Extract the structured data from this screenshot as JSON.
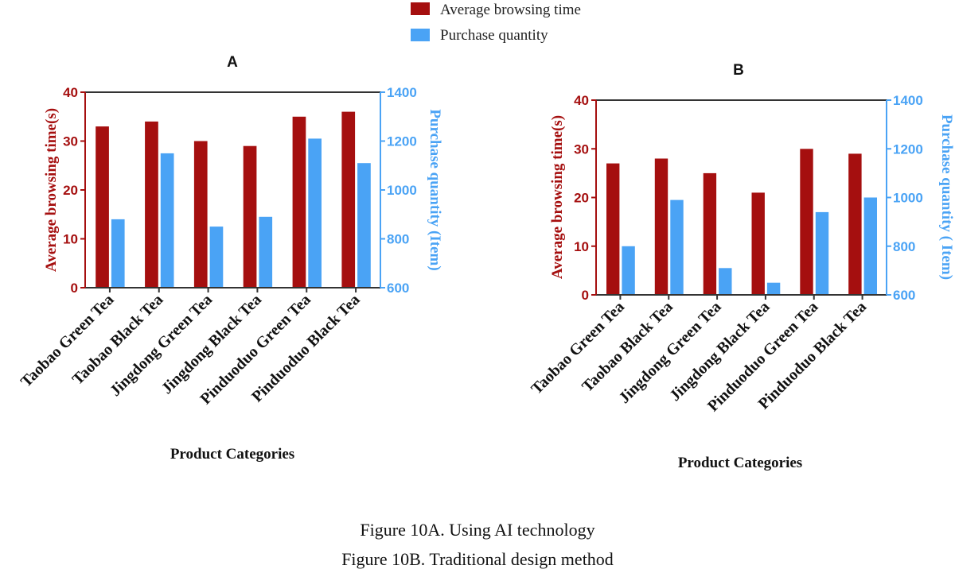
{
  "legend": {
    "items": [
      {
        "label": "Average browsing time",
        "color": "#a50f0f"
      },
      {
        "label": "Purchase quantity",
        "color": "#4aa3f5"
      }
    ]
  },
  "captions": [
    "Figure 10A. Using AI technology",
    "Figure 10B. Traditional design method"
  ],
  "chart_data": [
    {
      "type": "bar",
      "title": "A",
      "categories": [
        "Taobao Green Tea",
        "Taobao Black Tea",
        "Jingdong Green Tea",
        "Jingdong Black Tea",
        "Pinduoduo Green Tea",
        "Pinduoduo Black Tea"
      ],
      "xlabel": "Product Categories",
      "ylabel": "Average browsing time(s)",
      "ylabel_right": "Purchase quantity (Item)",
      "ylim": [
        0,
        40
      ],
      "ylim_right": [
        600,
        1400
      ],
      "yticks": [
        "0",
        "10",
        "20",
        "30",
        "40"
      ],
      "yticks_right": [
        "600",
        "800",
        "1000",
        "1200",
        "1400"
      ],
      "series": [
        {
          "name": "Average browsing time",
          "axis": "left",
          "color": "#a50f0f",
          "values": [
            33,
            34,
            30,
            29,
            35,
            36
          ]
        },
        {
          "name": "Purchase quantity",
          "axis": "right",
          "color": "#4aa3f5",
          "values": [
            880,
            1150,
            850,
            890,
            1210,
            1110
          ]
        }
      ],
      "legend_position": "top-center"
    },
    {
      "type": "bar",
      "title": "B",
      "categories": [
        "Taobao Green Tea",
        "Taobao Black Tea",
        "Jingdong Green Tea",
        "Jingdong Black Tea",
        "Pinduoduo Green Tea",
        "Pinduoduo Black Tea"
      ],
      "xlabel": "Product Categories",
      "ylabel": "Average browsing time(s)",
      "ylabel_right": "Purchase quantity ( Item)",
      "ylim": [
        0,
        40
      ],
      "ylim_right": [
        600,
        1400
      ],
      "yticks": [
        "0",
        "10",
        "20",
        "30",
        "40"
      ],
      "yticks_right": [
        "600",
        "800",
        "1000",
        "1200",
        "1400"
      ],
      "series": [
        {
          "name": "Average browsing time",
          "axis": "left",
          "color": "#a50f0f",
          "values": [
            27,
            28,
            25,
            21,
            30,
            29
          ]
        },
        {
          "name": "Purchase quantity",
          "axis": "right",
          "color": "#4aa3f5",
          "values": [
            800,
            990,
            710,
            650,
            940,
            1000
          ]
        }
      ],
      "legend_position": "top-center"
    }
  ]
}
